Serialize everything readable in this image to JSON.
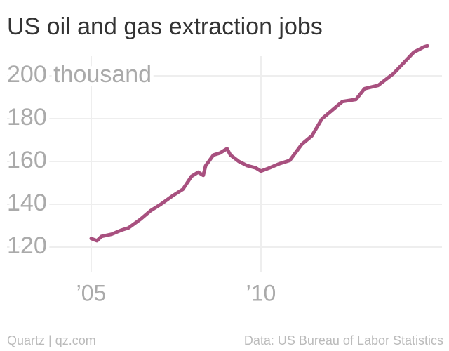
{
  "chart_data": {
    "type": "line",
    "title": "US oil and gas extraction jobs",
    "x": [
      2005.0,
      2005.17,
      2005.3,
      2005.6,
      2005.9,
      2006.1,
      2006.45,
      2006.75,
      2007.05,
      2007.4,
      2007.7,
      2007.95,
      2008.15,
      2008.3,
      2008.37,
      2008.6,
      2008.8,
      2009.0,
      2009.1,
      2009.35,
      2009.6,
      2009.85,
      2010.0,
      2010.25,
      2010.55,
      2010.85,
      2011.2,
      2011.5,
      2011.8,
      2012.1,
      2012.4,
      2012.8,
      2013.05,
      2013.45,
      2013.9,
      2014.2,
      2014.5,
      2014.8,
      2014.9
    ],
    "values": [
      124,
      123,
      125,
      126,
      128,
      129,
      133,
      137,
      140,
      144,
      147,
      153,
      155,
      153.5,
      158,
      163,
      164,
      166,
      163,
      160,
      158,
      157,
      155.5,
      157,
      159,
      160.5,
      168,
      172,
      180,
      184,
      188,
      189,
      194,
      195.5,
      201,
      206,
      211,
      213.5,
      214
    ],
    "color": "#a8507f",
    "xlim": [
      2005,
      2015
    ],
    "xticks": [
      {
        "value": 2005,
        "label": "’05"
      },
      {
        "value": 2010,
        "label": "’10"
      }
    ],
    "ylim": [
      110,
      220
    ],
    "yticks": [
      120,
      140,
      160,
      180,
      {
        "value": 200,
        "label": "200 thousand"
      }
    ],
    "grid": true,
    "source_left": "Quartz | qz.com",
    "source_right": "Data: US Bureau of Labor Statistics"
  }
}
